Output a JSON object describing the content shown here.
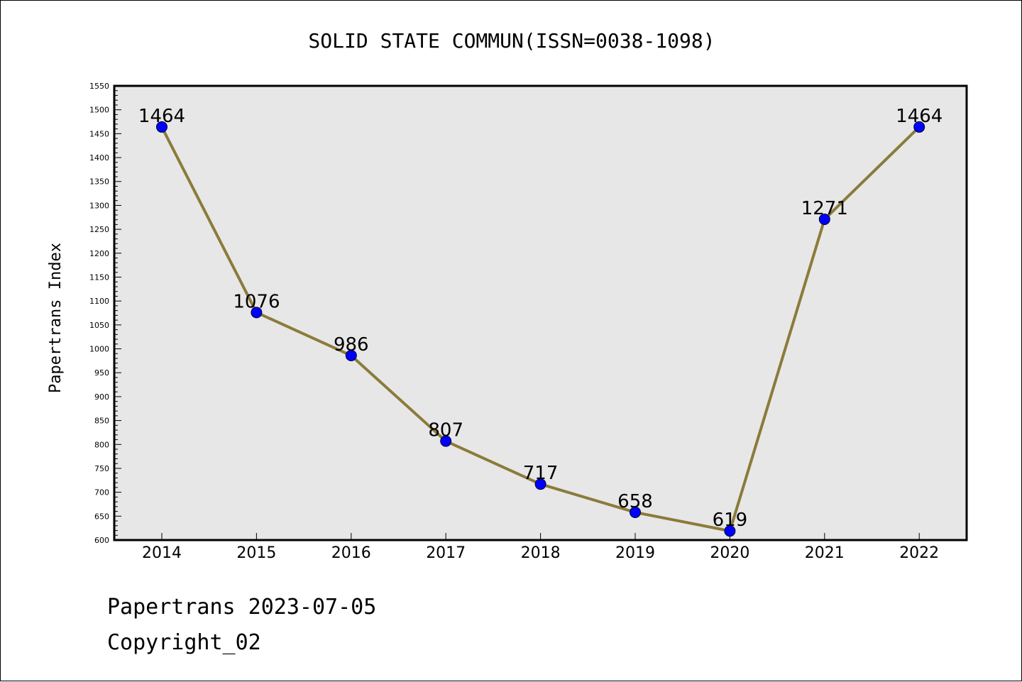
{
  "chart_data": {
    "type": "line",
    "title": "SOLID STATE COMMUN(ISSN=0038-1098)",
    "xlabel": "",
    "ylabel": "Papertrans Index",
    "categories": [
      "2014",
      "2015",
      "2016",
      "2017",
      "2018",
      "2019",
      "2020",
      "2021",
      "2022"
    ],
    "series": [
      {
        "values": [
          1464,
          1076,
          986,
          807,
          717,
          658,
          619,
          1271,
          1464
        ]
      }
    ],
    "data_labels": [
      "1464",
      "1076",
      "986",
      "807",
      "717",
      "658",
      "619",
      "1271",
      "1464"
    ],
    "ylim": [
      600,
      1550
    ],
    "y_major_step": 50,
    "y_minor_step": 10,
    "y_ticks": [
      "600",
      "650",
      "700",
      "750",
      "800",
      "850",
      "900",
      "950",
      "1000",
      "1050",
      "1100",
      "1150",
      "1200",
      "1250",
      "1300",
      "1350",
      "1400",
      "1450",
      "1500",
      "1550"
    ],
    "grid": false,
    "legend": "none",
    "colors": {
      "plot_background": "#e7e7e7",
      "line": "#8b7b3a",
      "marker": "#0000ff",
      "axes": "#000000"
    }
  },
  "footer": {
    "line1": "Papertrans 2023-07-05",
    "line2": "Copyright_02"
  }
}
